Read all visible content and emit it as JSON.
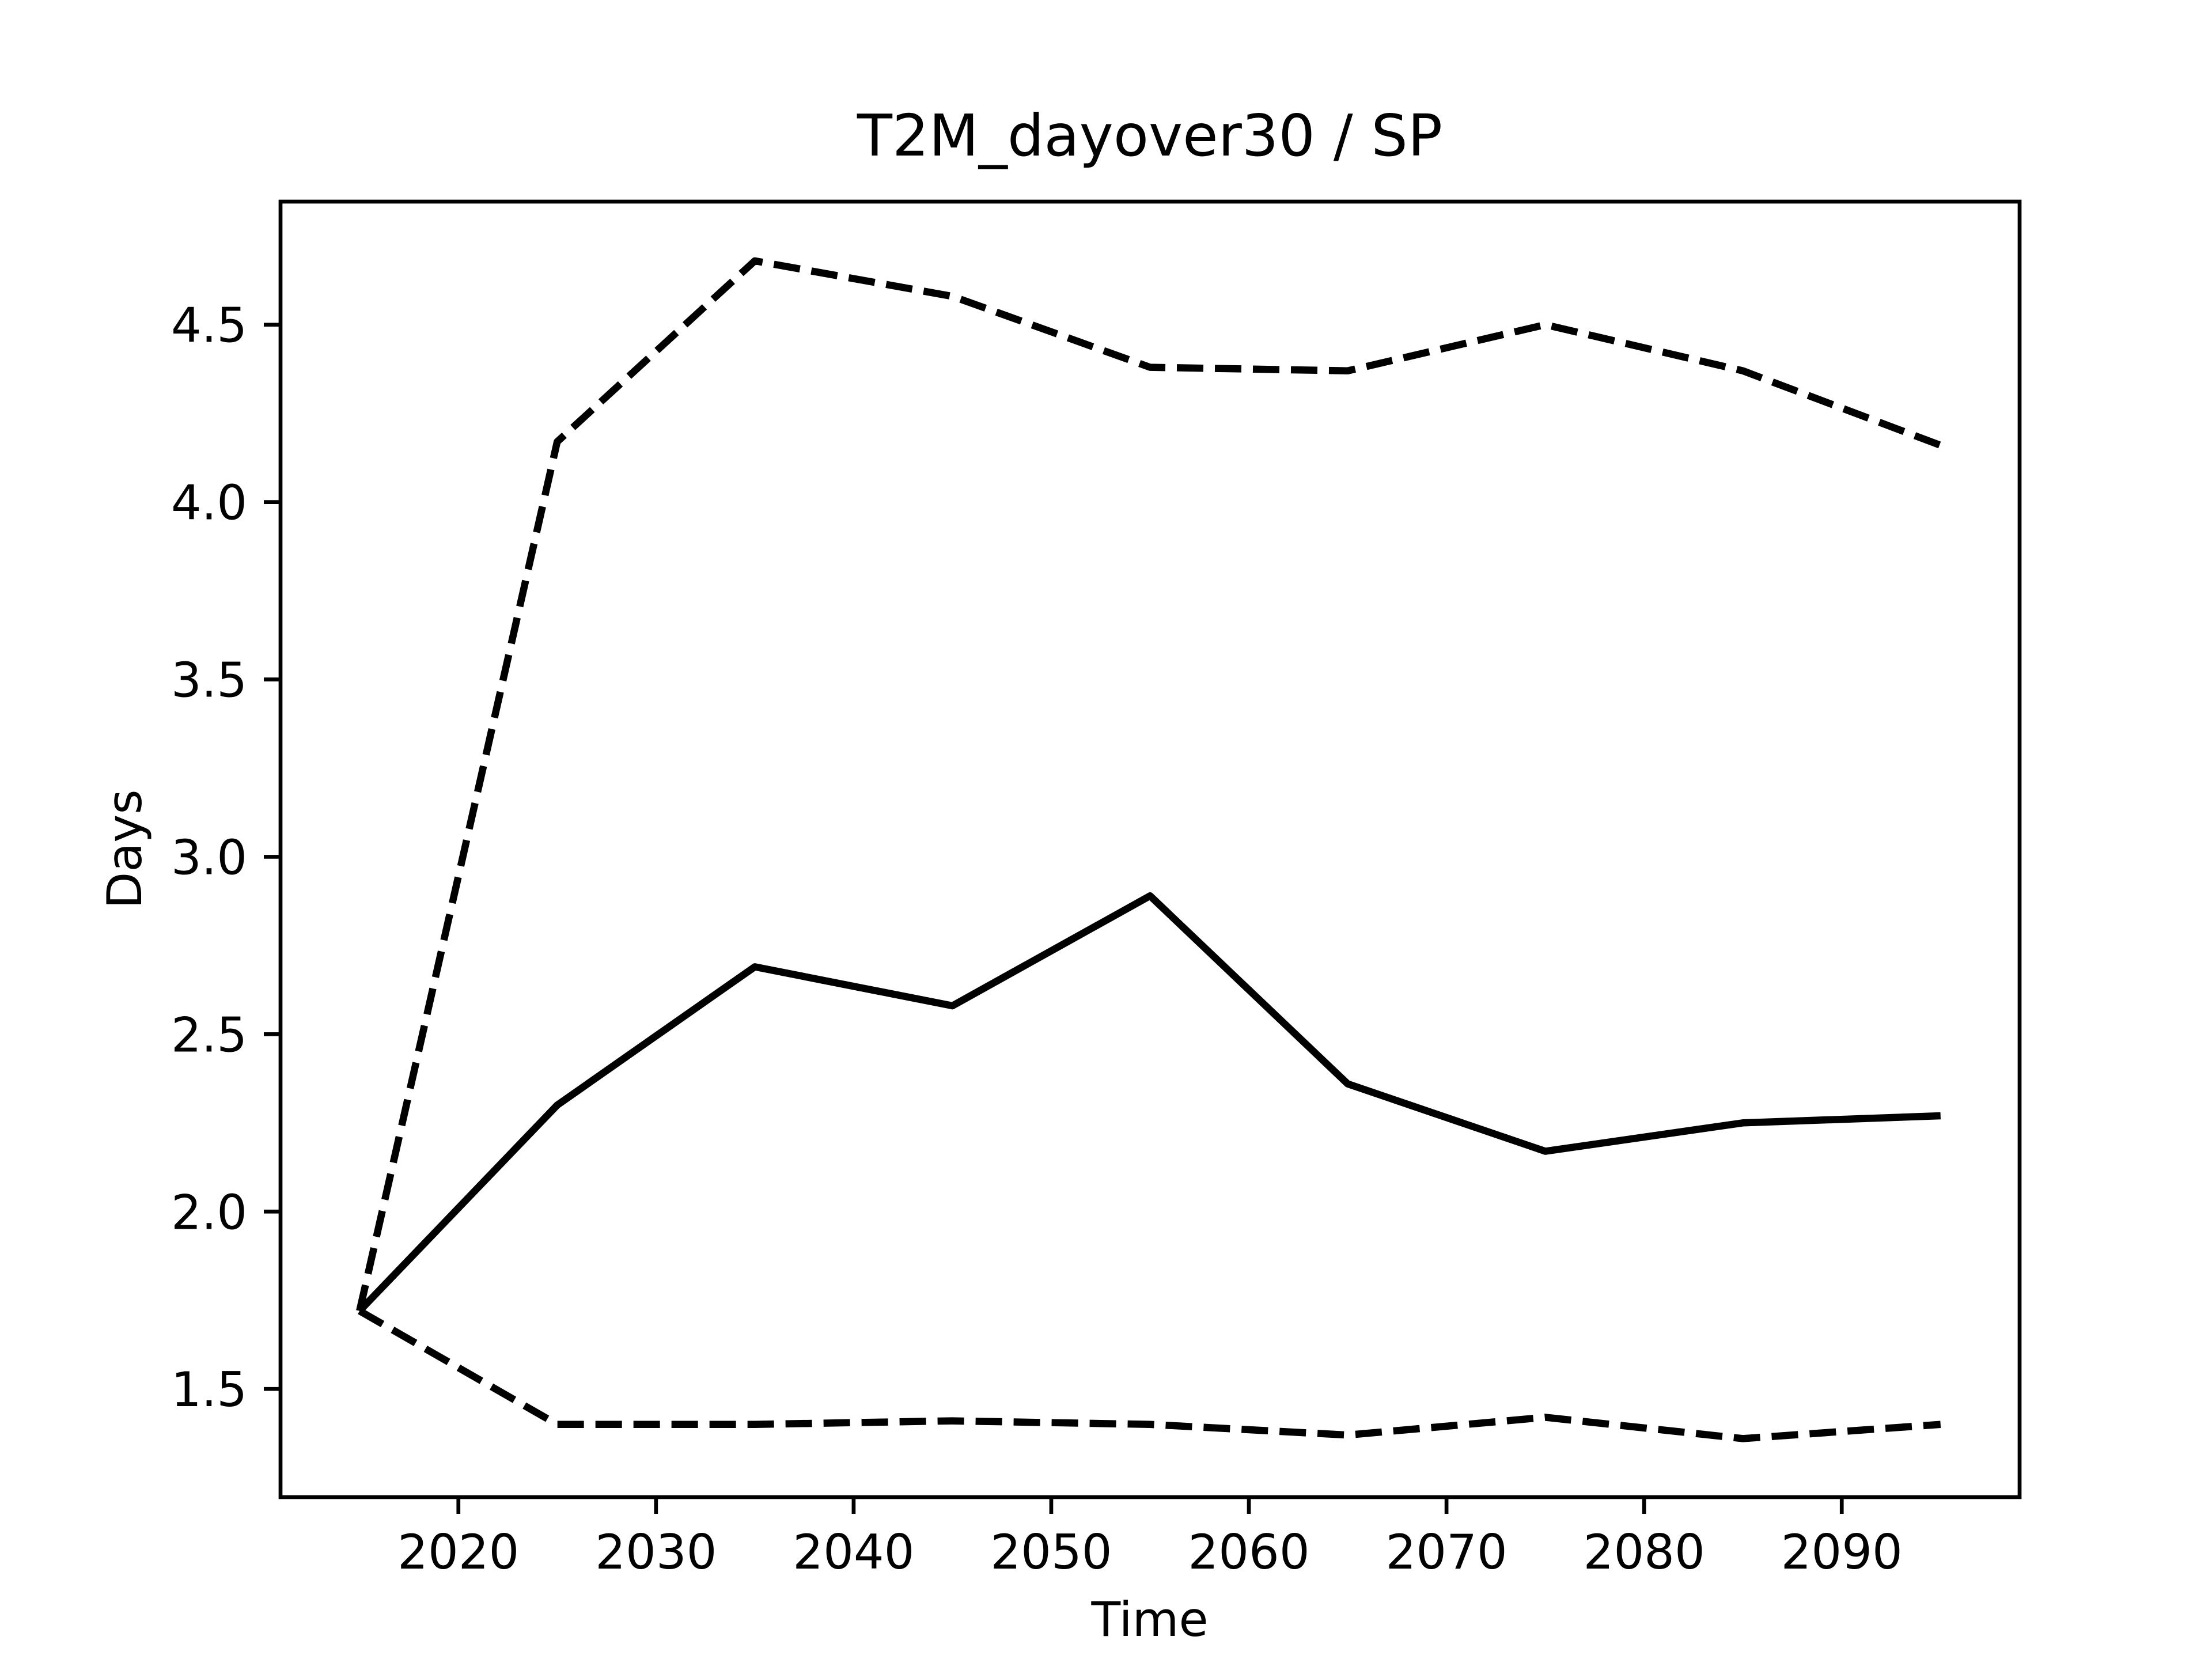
{
  "chart_data": {
    "type": "line",
    "title": "T2M_dayover30 / SP",
    "xlabel": "Time",
    "ylabel": "Days",
    "x": [
      2015,
      2025,
      2035,
      2045,
      2055,
      2065,
      2075,
      2085,
      2095
    ],
    "series": [
      {
        "color": "#000000",
        "dash": "solid",
        "values": [
          1.72,
          2.3,
          2.69,
          2.58,
          2.89,
          2.36,
          2.17,
          2.25,
          2.27
        ]
      },
      {
        "color": "#000000",
        "dash": "dashed",
        "values": [
          1.72,
          4.17,
          4.68,
          4.58,
          4.38,
          4.37,
          4.5,
          4.37,
          4.16
        ]
      },
      {
        "color": "#000000",
        "dash": "dashed",
        "values": [
          1.72,
          1.4,
          1.4,
          1.41,
          1.4,
          1.37,
          1.42,
          1.36,
          1.4
        ]
      }
    ],
    "xlim": [
      2011,
      2099
    ],
    "xticks": [
      2020,
      2030,
      2040,
      2050,
      2060,
      2070,
      2080,
      2090
    ],
    "ylim": [
      1.195,
      4.847
    ],
    "yticks": [
      1.5,
      {
        "value": 2,
        "label": "2.0"
      },
      2.5,
      {
        "value": 3,
        "label": "3.0"
      },
      3.5,
      {
        "value": 4,
        "label": "4.0"
      },
      4.5
    ],
    "grid": false
  }
}
